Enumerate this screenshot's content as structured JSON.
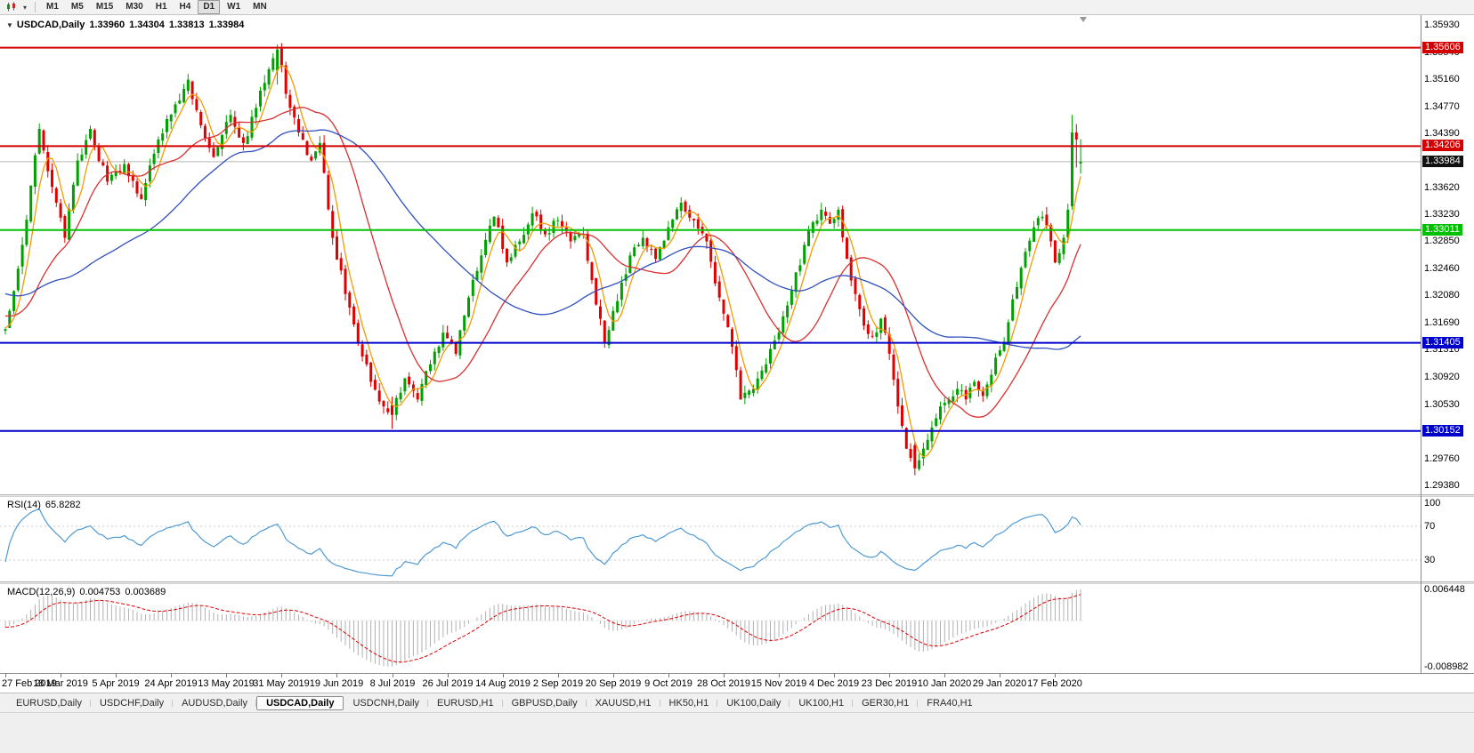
{
  "toolbar": {
    "timeframes": [
      "M1",
      "M5",
      "M15",
      "M30",
      "H1",
      "H4",
      "D1",
      "W1",
      "MN"
    ],
    "active_timeframe": "D1",
    "chart_type_icon": "candlestick-chart",
    "dropdown_glyph": "▾"
  },
  "chart_header": {
    "collapse_glyph": "▼",
    "symbol": "USDCAD,Daily",
    "open": "1.33960",
    "high": "1.34304",
    "low": "1.33813",
    "close": "1.33984"
  },
  "price_axis": {
    "grid_labels": [
      "1.35930",
      "1.35540",
      "1.35160",
      "1.34770",
      "1.34390",
      "1.34000",
      "1.33620",
      "1.33230",
      "1.32850",
      "1.32460",
      "1.32080",
      "1.31690",
      "1.31310",
      "1.30920",
      "1.30530",
      "1.30150",
      "1.29760",
      "1.29380"
    ]
  },
  "rsi_panel": {
    "name": "RSI(14)",
    "value": "65.8282",
    "axis_labels": [
      "100",
      "70",
      "30"
    ],
    "levels": [
      70,
      30
    ],
    "line_color": "#4f9ad2"
  },
  "macd_panel": {
    "name": "MACD(12,26,9)",
    "main_value": "0.004753",
    "signal_value": "0.003689",
    "axis_top": "0.006448",
    "axis_bottom": "-0.008982",
    "histogram_color": "#b0b0b0",
    "signal_color": "#e00000"
  },
  "tabs": {
    "items": [
      "EURUSD,Daily",
      "USDCHF,Daily",
      "AUDUSD,Daily",
      "USDCAD,Daily",
      "USDCNH,Daily",
      "EURUSD,H1",
      "GBPUSD,Daily",
      "XAUUSD,H1",
      "HK50,H1",
      "UK100,Daily",
      "UK100,H1",
      "GER30,H1",
      "FRA40,H1"
    ],
    "active": "USDCAD,Daily"
  },
  "chart_data": {
    "type": "candlestick",
    "symbol": "USDCAD",
    "timeframe": "Daily",
    "view": {
      "price_min": 1.2925,
      "price_max": 1.3607
    },
    "date_labels": [
      "27 Feb 2019",
      "18 Mar 2019",
      "5 Apr 2019",
      "24 Apr 2019",
      "13 May 2019",
      "31 May 2019",
      "19 Jun 2019",
      "8 Jul 2019",
      "26 Jul 2019",
      "14 Aug 2019",
      "2 Sep 2019",
      "20 Sep 2019",
      "9 Oct 2019",
      "28 Oct 2019",
      "15 Nov 2019",
      "4 Dec 2019",
      "23 Dec 2019",
      "10 Jan 2020",
      "29 Jan 2020",
      "17 Feb 2020"
    ],
    "colors": {
      "up": "#00a000",
      "down": "#e00000",
      "last_price_line": "#b8b8b8"
    },
    "last_candle": {
      "open": 1.3396,
      "high": 1.34304,
      "low": 1.33813,
      "close": 1.33984
    },
    "last_price": {
      "value": 1.33984,
      "label": "1.33984",
      "badge_bg": "#111111"
    },
    "horizontal_lines": [
      {
        "price": 1.35606,
        "label": "1.35606",
        "color": "#d40000",
        "width": 2
      },
      {
        "price": 1.34206,
        "label": "1.34206",
        "color": "#d40000",
        "width": 2
      },
      {
        "price": 1.33011,
        "label": "1.33011",
        "color": "#00c000",
        "width": 2
      },
      {
        "price": 1.31405,
        "label": "1.31405",
        "color": "#0000cc",
        "width": 2
      },
      {
        "price": 1.30152,
        "label": "1.30152",
        "color": "#0000cc",
        "width": 2
      }
    ],
    "moving_averages": [
      {
        "period": 5,
        "color": "#f59a00"
      },
      {
        "period": 20,
        "color": "#d93030"
      },
      {
        "period": 50,
        "color": "#3050c0"
      }
    ],
    "indicators": {
      "rsi": {
        "period": 14,
        "last": 65.8282
      },
      "macd": {
        "fast": 12,
        "slow": 26,
        "signal": 9,
        "last_main": 0.004753,
        "last_signal": 0.003689
      }
    },
    "pre_waypoints": [
      [
        -55,
        1.328
      ],
      [
        -30,
        1.322
      ],
      [
        -10,
        1.318
      ],
      [
        -1,
        1.3158
      ]
    ],
    "waypoints": [
      [
        0,
        1.316
      ],
      [
        4,
        1.328
      ],
      [
        8,
        1.3445
      ],
      [
        12,
        1.334
      ],
      [
        14,
        1.329
      ],
      [
        17,
        1.34
      ],
      [
        20,
        1.3445
      ],
      [
        24,
        1.337
      ],
      [
        28,
        1.3395
      ],
      [
        32,
        1.3345
      ],
      [
        36,
        1.343
      ],
      [
        40,
        1.348
      ],
      [
        43,
        1.3515
      ],
      [
        46,
        1.345
      ],
      [
        49,
        1.3405
      ],
      [
        53,
        1.3465
      ],
      [
        56,
        1.3425
      ],
      [
        59,
        1.3475
      ],
      [
        62,
        1.353
      ],
      [
        64,
        1.3558
      ],
      [
        66,
        1.3495
      ],
      [
        69,
        1.344
      ],
      [
        72,
        1.34
      ],
      [
        74,
        1.3425
      ],
      [
        77,
        1.329
      ],
      [
        80,
        1.321
      ],
      [
        83,
        1.314
      ],
      [
        86,
        1.3085
      ],
      [
        89,
        1.305
      ],
      [
        91,
        1.3038
      ],
      [
        94,
        1.309
      ],
      [
        97,
        1.306
      ],
      [
        100,
        1.311
      ],
      [
        103,
        1.3155
      ],
      [
        106,
        1.3125
      ],
      [
        109,
        1.3205
      ],
      [
        112,
        1.3265
      ],
      [
        115,
        1.332
      ],
      [
        118,
        1.3255
      ],
      [
        121,
        1.3285
      ],
      [
        124,
        1.3325
      ],
      [
        127,
        1.3295
      ],
      [
        130,
        1.3315
      ],
      [
        133,
        1.3285
      ],
      [
        136,
        1.3295
      ],
      [
        139,
        1.3195
      ],
      [
        141,
        1.314
      ],
      [
        144,
        1.32
      ],
      [
        147,
        1.3265
      ],
      [
        150,
        1.329
      ],
      [
        153,
        1.326
      ],
      [
        156,
        1.3305
      ],
      [
        159,
        1.334
      ],
      [
        162,
        1.3315
      ],
      [
        165,
        1.3285
      ],
      [
        168,
        1.3205
      ],
      [
        171,
        1.3135
      ],
      [
        173,
        1.306
      ],
      [
        176,
        1.3075
      ],
      [
        179,
        1.311
      ],
      [
        182,
        1.3155
      ],
      [
        185,
        1.3215
      ],
      [
        189,
        1.33
      ],
      [
        192,
        1.333
      ],
      [
        194,
        1.331
      ],
      [
        196,
        1.333
      ],
      [
        198,
        1.326
      ],
      [
        200,
        1.321
      ],
      [
        202,
        1.3165
      ],
      [
        204,
        1.315
      ],
      [
        206,
        1.3175
      ],
      [
        208,
        1.3125
      ],
      [
        210,
        1.305
      ],
      [
        212,
        1.299
      ],
      [
        214,
        1.2962
      ],
      [
        216,
        1.299
      ],
      [
        218,
        1.302
      ],
      [
        220,
        1.305
      ],
      [
        222,
        1.306
      ],
      [
        224,
        1.3075
      ],
      [
        226,
        1.306
      ],
      [
        228,
        1.3085
      ],
      [
        230,
        1.3065
      ],
      [
        232,
        1.3095
      ],
      [
        234,
        1.313
      ],
      [
        236,
        1.317
      ],
      [
        238,
        1.322
      ],
      [
        240,
        1.327
      ],
      [
        242,
        1.3305
      ],
      [
        244,
        1.332
      ],
      [
        246,
        1.3285
      ],
      [
        247,
        1.3255
      ],
      [
        249,
        1.329
      ],
      [
        250,
        1.333
      ],
      [
        251,
        1.344
      ],
      [
        252,
        1.343
      ],
      [
        253,
        1.33984
      ]
    ],
    "candle_overrides": {
      "64": {
        "o": 1.3528,
        "h": 1.3565,
        "l": 1.3508,
        "c": 1.3558
      },
      "91": {
        "o": 1.3052,
        "h": 1.3064,
        "l": 1.3018,
        "c": 1.3038
      },
      "214": {
        "o": 1.2995,
        "h": 1.3001,
        "l": 1.2952,
        "c": 1.2962
      },
      "251": {
        "o": 1.3335,
        "h": 1.3465,
        "l": 1.333,
        "c": 1.344
      },
      "252": {
        "o": 1.344,
        "h": 1.3452,
        "l": 1.339,
        "c": 1.343
      },
      "253": {
        "o": 1.3396,
        "h": 1.34304,
        "l": 1.33813,
        "c": 1.33984
      }
    }
  }
}
